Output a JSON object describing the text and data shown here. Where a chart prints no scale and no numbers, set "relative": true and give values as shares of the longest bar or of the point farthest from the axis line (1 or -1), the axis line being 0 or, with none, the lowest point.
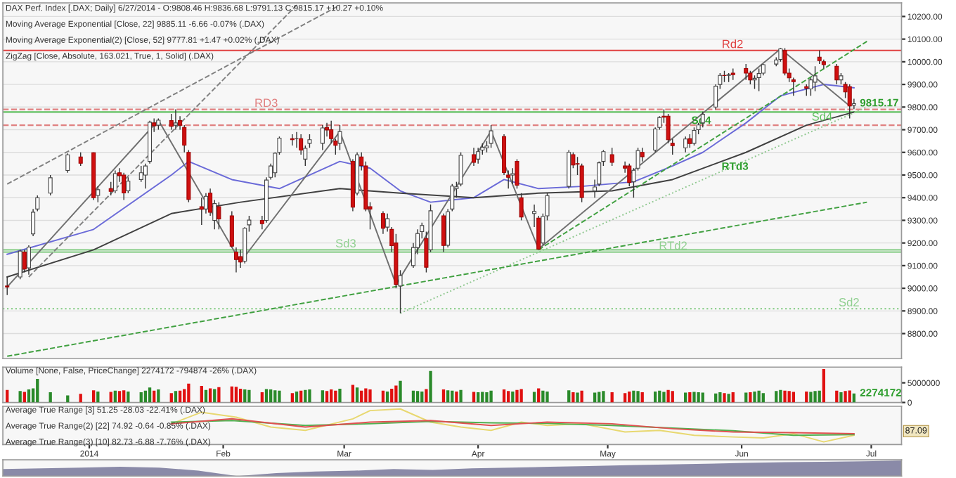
{
  "chart_data": [
    {
      "type": "candlestick",
      "title": "DAX Perf. Index [.DAX; Daily] 6/27/2014 - O:9808.46 H:9836.68 L:9791.13 C:9815.17 +10.27 +0.10%",
      "annotations": [
        "Moving Average Exponential [Close, 22] 9885.11 -6.66 -0.07% (.DAX)",
        "Moving Average Exponential(2) [Close, 52] 9777.81 +1.47 +0.02% (.DAX)",
        "ZigZag [Close, Absolute, 163.021, True, 1, Solid] (.DAX)",
        {
          "text": "RTd3",
          "x": "2014-05-26",
          "y": 9535
        },
        {
          "text": "Sd4",
          "x": "2014-05-19",
          "y": 9738
        },
        {
          "text": "9815.17",
          "x": "2014-06-27",
          "y": 9815.17
        }
      ],
      "x": [
        "2013-12-13",
        "2013-12-16",
        "2013-12-17",
        "2013-12-18",
        "2013-12-19",
        "2013-12-20",
        "2013-12-23",
        "2013-12-27",
        "2013-12-30",
        "2014-01-02",
        "2014-01-03",
        "2014-01-06",
        "2014-01-07",
        "2014-01-08",
        "2014-01-09",
        "2014-01-10",
        "2014-01-13",
        "2014-01-14",
        "2014-01-15",
        "2014-01-16",
        "2014-01-17",
        "2014-01-20",
        "2014-01-21",
        "2014-01-22",
        "2014-01-23",
        "2014-01-24",
        "2014-01-27",
        "2014-01-28",
        "2014-01-29",
        "2014-01-30",
        "2014-01-31",
        "2014-02-03",
        "2014-02-04",
        "2014-02-05",
        "2014-02-06",
        "2014-02-07",
        "2014-02-10",
        "2014-02-11",
        "2014-02-12",
        "2014-02-13",
        "2014-02-14",
        "2014-02-17",
        "2014-02-18",
        "2014-02-19",
        "2014-02-20",
        "2014-02-21",
        "2014-02-24",
        "2014-02-25",
        "2014-02-26",
        "2014-02-27",
        "2014-02-28",
        "2014-03-03",
        "2014-03-04",
        "2014-03-05",
        "2014-03-06",
        "2014-03-07",
        "2014-03-10",
        "2014-03-11",
        "2014-03-12",
        "2014-03-13",
        "2014-03-14",
        "2014-03-17",
        "2014-03-18",
        "2014-03-19",
        "2014-03-20",
        "2014-03-21",
        "2014-03-24",
        "2014-03-25",
        "2014-03-26",
        "2014-03-27",
        "2014-03-28",
        "2014-03-31",
        "2014-04-01",
        "2014-04-02",
        "2014-04-03",
        "2014-04-04",
        "2014-04-07",
        "2014-04-08",
        "2014-04-09",
        "2014-04-10",
        "2014-04-11",
        "2014-04-14",
        "2014-04-15",
        "2014-04-16",
        "2014-04-17",
        "2014-04-22",
        "2014-04-23",
        "2014-04-24",
        "2014-04-25",
        "2014-04-28",
        "2014-04-29",
        "2014-04-30",
        "2014-05-02",
        "2014-05-05",
        "2014-05-06",
        "2014-05-07",
        "2014-05-08",
        "2014-05-09",
        "2014-05-12",
        "2014-05-13",
        "2014-05-14",
        "2014-05-15",
        "2014-05-16",
        "2014-05-19",
        "2014-05-20",
        "2014-05-21",
        "2014-05-22",
        "2014-05-23",
        "2014-05-26",
        "2014-05-27",
        "2014-05-28",
        "2014-05-29",
        "2014-05-30",
        "2014-06-02",
        "2014-06-03",
        "2014-06-04",
        "2014-06-05",
        "2014-06-06",
        "2014-06-09",
        "2014-06-10",
        "2014-06-11",
        "2014-06-12",
        "2014-06-13",
        "2014-06-16",
        "2014-06-17",
        "2014-06-18",
        "2014-06-19",
        "2014-06-20",
        "2014-06-23",
        "2014-06-24",
        "2014-06-25",
        "2014-06-26",
        "2014-06-27"
      ],
      "ohlc": [
        [
          9010,
          9050,
          8970,
          9006
        ],
        [
          9050,
          9170,
          9040,
          9164
        ],
        [
          9160,
          9170,
          9070,
          9085
        ],
        [
          9090,
          9190,
          9060,
          9182
        ],
        [
          9240,
          9350,
          9230,
          9336
        ],
        [
          9350,
          9410,
          9340,
          9400
        ],
        [
          9420,
          9500,
          9410,
          9488
        ],
        [
          9520,
          9595,
          9510,
          9589
        ],
        [
          9580,
          9600,
          9540,
          9552
        ],
        [
          9598,
          9600,
          9390,
          9400
        ],
        [
          9410,
          9450,
          9380,
          9435
        ],
        [
          9440,
          9470,
          9410,
          9428
        ],
        [
          9430,
          9520,
          9420,
          9506
        ],
        [
          9510,
          9530,
          9470,
          9497
        ],
        [
          9500,
          9510,
          9390,
          9421
        ],
        [
          9430,
          9490,
          9420,
          9473
        ],
        [
          9480,
          9540,
          9470,
          9510
        ],
        [
          9500,
          9550,
          9440,
          9540
        ],
        [
          9560,
          9740,
          9550,
          9733
        ],
        [
          9730,
          9750,
          9690,
          9717
        ],
        [
          9720,
          9750,
          9700,
          9742
        ],
        [
          9740,
          9770,
          9700,
          9715
        ],
        [
          9720,
          9790,
          9700,
          9730
        ],
        [
          9740,
          9760,
          9700,
          9720
        ],
        [
          9710,
          9720,
          9600,
          9632
        ],
        [
          9600,
          9610,
          9380,
          9392
        ],
        [
          9360,
          9400,
          9280,
          9349
        ],
        [
          9350,
          9420,
          9330,
          9406
        ],
        [
          9420,
          9440,
          9320,
          9336
        ],
        [
          9300,
          9390,
          9260,
          9374
        ],
        [
          9360,
          9380,
          9260,
          9306
        ],
        [
          9320,
          9340,
          9180,
          9186
        ],
        [
          9160,
          9180,
          9070,
          9127
        ],
        [
          9140,
          9170,
          9090,
          9116
        ],
        [
          9120,
          9270,
          9110,
          9265
        ],
        [
          9280,
          9320,
          9250,
          9301
        ],
        [
          9300,
          9320,
          9260,
          9285
        ],
        [
          9300,
          9490,
          9290,
          9478
        ],
        [
          9490,
          9550,
          9480,
          9540
        ],
        [
          9510,
          9600,
          9490,
          9596
        ],
        [
          9600,
          9670,
          9590,
          9663
        ],
        [
          9660,
          9680,
          9630,
          9656
        ],
        [
          9660,
          9690,
          9620,
          9660
        ],
        [
          9660,
          9680,
          9590,
          9610
        ],
        [
          9570,
          9630,
          9540,
          9618
        ],
        [
          9640,
          9680,
          9620,
          9656
        ],
        [
          9640,
          9720,
          9610,
          9708
        ],
        [
          9710,
          9730,
          9670,
          9699
        ],
        [
          9700,
          9740,
          9640,
          9661
        ],
        [
          9650,
          9660,
          9590,
          9631
        ],
        [
          9640,
          9720,
          9610,
          9692
        ],
        [
          9560,
          9570,
          9340,
          9358
        ],
        [
          9420,
          9600,
          9410,
          9589
        ],
        [
          9580,
          9600,
          9520,
          9542
        ],
        [
          9540,
          9560,
          9340,
          9350
        ],
        [
          9360,
          9380,
          9260,
          9350
        ],
        [
          9330,
          9340,
          9240,
          9265
        ],
        [
          9270,
          9330,
          9250,
          9307
        ],
        [
          9260,
          9270,
          9160,
          9188
        ],
        [
          9200,
          9240,
          9000,
          9017
        ],
        [
          9010,
          9080,
          8890,
          9056
        ],
        [
          9100,
          9200,
          9090,
          9180
        ],
        [
          9180,
          9260,
          9150,
          9242
        ],
        [
          9250,
          9290,
          9220,
          9277
        ],
        [
          9220,
          9250,
          9070,
          9093
        ],
        [
          9170,
          9370,
          9160,
          9342
        ],
        [
          9320,
          9330,
          9160,
          9189
        ],
        [
          9190,
          9350,
          9180,
          9338
        ],
        [
          9350,
          9460,
          9340,
          9451
        ],
        [
          9440,
          9470,
          9400,
          9448
        ],
        [
          9460,
          9600,
          9450,
          9587
        ],
        [
          9590,
          9620,
          9540,
          9556
        ],
        [
          9570,
          9620,
          9550,
          9603
        ],
        [
          9610,
          9640,
          9590,
          9623
        ],
        [
          9620,
          9650,
          9600,
          9628
        ],
        [
          9640,
          9720,
          9620,
          9695
        ],
        [
          9670,
          9680,
          9500,
          9511
        ],
        [
          9500,
          9520,
          9440,
          9490
        ],
        [
          9500,
          9530,
          9460,
          9506
        ],
        [
          9560,
          9570,
          9440,
          9455
        ],
        [
          9400,
          9420,
          9300,
          9315
        ],
        [
          9330,
          9370,
          9270,
          9339
        ],
        [
          9310,
          9320,
          9170,
          9173
        ],
        [
          9200,
          9330,
          9190,
          9317
        ],
        [
          9320,
          9420,
          9300,
          9409
        ],
        [
          9450,
          9610,
          9440,
          9600
        ],
        [
          9590,
          9600,
          9530,
          9544
        ],
        [
          9550,
          9580,
          9500,
          9548
        ],
        [
          9540,
          9550,
          9380,
          9401
        ],
        [
          9430,
          9480,
          9400,
          9447
        ],
        [
          9460,
          9560,
          9450,
          9554
        ],
        [
          9560,
          9610,
          9540,
          9603
        ],
        [
          9590,
          9620,
          9540,
          9556
        ],
        [
          9540,
          9560,
          9510,
          9530
        ],
        [
          9540,
          9550,
          9450,
          9467
        ],
        [
          9470,
          9530,
          9400,
          9521
        ],
        [
          9530,
          9620,
          9520,
          9608
        ],
        [
          9600,
          9620,
          9560,
          9581
        ],
        [
          9610,
          9710,
          9600,
          9703
        ],
        [
          9710,
          9760,
          9700,
          9754
        ],
        [
          9760,
          9790,
          9730,
          9755
        ],
        [
          9760,
          9770,
          9640,
          9656
        ],
        [
          9640,
          9660,
          9590,
          9630
        ],
        [
          9620,
          9670,
          9600,
          9659
        ],
        [
          9660,
          9680,
          9620,
          9639
        ],
        [
          9640,
          9710,
          9630,
          9697
        ],
        [
          9700,
          9730,
          9680,
          9721
        ],
        [
          9730,
          9780,
          9710,
          9768
        ],
        [
          9800,
          9900,
          9790,
          9892
        ],
        [
          9900,
          9950,
          9880,
          9940
        ],
        [
          9940,
          9960,
          9910,
          9939
        ],
        [
          9940,
          9950,
          9910,
          9943
        ],
        [
          9950,
          9970,
          9920,
          9943
        ],
        [
          9970,
          9990,
          9920,
          9950
        ],
        [
          9950,
          9960,
          9900,
          9920
        ],
        [
          9920,
          9940,
          9880,
          9927
        ],
        [
          9930,
          9970,
          9870,
          9948
        ],
        [
          9950,
          9990,
          9940,
          9987
        ],
        [
          9990,
          10020,
          9980,
          10008
        ],
        [
          10010,
          10060,
          10000,
          10057
        ],
        [
          10050,
          10060,
          9940,
          9950
        ],
        [
          9950,
          9970,
          9910,
          9929
        ],
        [
          9920,
          9930,
          9850,
          9912
        ],
        [
          9890,
          9900,
          9850,
          9883
        ],
        [
          9880,
          9930,
          9850,
          9920
        ],
        [
          9910,
          9980,
          9870,
          9938
        ],
        [
          10020,
          10050,
          9990,
          10005
        ],
        [
          10000,
          10010,
          9970,
          9987
        ],
        [
          9980,
          9990,
          9900,
          9920
        ],
        [
          9920,
          9950,
          9900,
          9938
        ],
        [
          9900,
          9910,
          9840,
          9867
        ],
        [
          9890,
          9900,
          9750,
          9805
        ],
        [
          9808,
          9837,
          9791,
          9815
        ]
      ],
      "series": [
        {
          "type": "line",
          "color": "#6a6ad8",
          "line_style": "solid",
          "x": [
            "2013-12-13",
            "2014-01-02",
            "2014-01-20",
            "2014-01-24",
            "2014-02-03",
            "2014-02-14",
            "2014-02-28",
            "2014-03-07",
            "2014-03-14",
            "2014-03-21",
            "2014-03-31",
            "2014-04-07",
            "2014-04-15",
            "2014-04-25",
            "2014-05-07",
            "2014-05-16",
            "2014-05-23",
            "2014-06-02",
            "2014-06-10",
            "2014-06-20",
            "2014-06-27"
          ],
          "values": [
            9150,
            9260,
            9500,
            9560,
            9480,
            9440,
            9560,
            9530,
            9430,
            9380,
            9400,
            9480,
            9440,
            9450,
            9470,
            9540,
            9600,
            9730,
            9850,
            9900,
            9885
          ]
        },
        {
          "type": "line",
          "color": "#404040",
          "line_style": "solid",
          "x": [
            "2013-12-13",
            "2014-01-02",
            "2014-01-20",
            "2014-02-05",
            "2014-02-28",
            "2014-03-14",
            "2014-03-31",
            "2014-04-15",
            "2014-05-02",
            "2014-05-16",
            "2014-06-02",
            "2014-06-16",
            "2014-06-27"
          ],
          "values": [
            9050,
            9170,
            9330,
            9380,
            9440,
            9420,
            9400,
            9420,
            9430,
            9480,
            9600,
            9720,
            9778
          ]
        },
        {
          "type": "line",
          "color": "#707070",
          "line_style": "solid",
          "x": [
            "2013-12-13",
            "2014-01-17",
            "2014-02-05",
            "2014-02-28",
            "2014-03-13",
            "2014-04-04",
            "2014-04-15",
            "2014-06-10",
            "2014-06-26"
          ],
          "values": [
            9006,
            9742,
            9116,
            9692,
            9017,
            9695,
            9173,
            10057,
            9805
          ]
        },
        {
          "type": "line",
          "color": "#808080",
          "line_style": "dashed",
          "x": [
            "2013-12-13",
            "2014-02-28"
          ],
          "values": [
            9460,
            10250
          ]
        },
        {
          "type": "line",
          "color": "#808080",
          "line_style": "dashed",
          "x": [
            "2013-12-18",
            "2014-02-18"
          ],
          "values": [
            9050,
            10250
          ]
        },
        {
          "type": "line",
          "color": "#40a040",
          "line_style": "dashed",
          "x": [
            "2014-04-15",
            "2014-06-30"
          ],
          "values": [
            9170,
            10090
          ]
        },
        {
          "type": "line",
          "color": "#90c890",
          "line_style": "dotted",
          "x": [
            "2014-03-14",
            "2014-06-30"
          ],
          "values": [
            8890,
            9800
          ]
        },
        {
          "type": "line",
          "color": "#40a040",
          "line_style": "dashed",
          "x": [
            "2013-12-13",
            "2014-06-30"
          ],
          "values": [
            8700,
            9380
          ]
        }
      ],
      "ref_lines": [
        {
          "axis": "y",
          "value": 9790,
          "label": "RD3",
          "color": "#e08080",
          "line_style": "dashed"
        },
        {
          "axis": "y",
          "value": 9720,
          "color": "#e08080",
          "line_style": "dashed"
        },
        {
          "axis": "y",
          "value": 10050,
          "label": "Rd2",
          "color": "#e04040",
          "line_style": "solid"
        },
        {
          "axis": "y",
          "value": 9778,
          "label": "Sd4",
          "color": "#60c060",
          "line_style": "solid"
        },
        {
          "axis": "y",
          "value": 9170,
          "label": "Sd3",
          "color": "#90d090",
          "line_style": "solid"
        },
        {
          "axis": "y",
          "value": 9160,
          "label": "RTd2",
          "color": "#90d090",
          "line_style": "solid"
        },
        {
          "axis": "y",
          "value": 8910,
          "label": "Sd2",
          "color": "#90d090",
          "line_style": "dotted"
        }
      ],
      "xlim": [
        "2013-12-12",
        "2014-07-08"
      ],
      "ylim": [
        8690,
        10260
      ],
      "yticks": [
        {
          "value": 8800,
          "label": "8800.00"
        },
        {
          "value": 8900,
          "label": "8900.00"
        },
        {
          "value": 9000,
          "label": "9000.00"
        },
        {
          "value": 9100,
          "label": "9100.00"
        },
        {
          "value": 9200,
          "label": "9200.00"
        },
        {
          "value": 9300,
          "label": "9300.00"
        },
        {
          "value": 9400,
          "label": "9400.00"
        },
        {
          "value": 9500,
          "label": "9500.00"
        },
        {
          "value": 9600,
          "label": "9600.00"
        },
        {
          "value": 9700,
          "label": "9700.00"
        },
        {
          "value": 9800,
          "label": "9800.00"
        },
        {
          "value": 9900,
          "label": "9900.00"
        },
        {
          "value": 10000,
          "label": "10000.00"
        },
        {
          "value": 10100,
          "label": "10100.00"
        },
        {
          "value": 10200,
          "label": "10200.00"
        }
      ],
      "tick_labels": "y",
      "grid": "y"
    },
    {
      "type": "bar",
      "title": "Volume [None, False, PriceChange] 2274172 -794874 -26% (.DAX)",
      "annotations": [
        {
          "text": "2274172",
          "x": "2014-06-27",
          "y": 2274172
        }
      ],
      "x": [
        "2013-12-13",
        "2013-12-16",
        "2013-12-17",
        "2013-12-18",
        "2013-12-19",
        "2013-12-20",
        "2013-12-23",
        "2013-12-27",
        "2013-12-30",
        "2014-01-02",
        "2014-01-03",
        "2014-01-06",
        "2014-01-07",
        "2014-01-08",
        "2014-01-09",
        "2014-01-10",
        "2014-01-13",
        "2014-01-14",
        "2014-01-15",
        "2014-01-16",
        "2014-01-17",
        "2014-01-20",
        "2014-01-21",
        "2014-01-22",
        "2014-01-23",
        "2014-01-24",
        "2014-01-27",
        "2014-01-28",
        "2014-01-29",
        "2014-01-30",
        "2014-01-31",
        "2014-02-03",
        "2014-02-04",
        "2014-02-05",
        "2014-02-06",
        "2014-02-07",
        "2014-02-10",
        "2014-02-11",
        "2014-02-12",
        "2014-02-13",
        "2014-02-14",
        "2014-02-17",
        "2014-02-18",
        "2014-02-19",
        "2014-02-20",
        "2014-02-21",
        "2014-02-24",
        "2014-02-25",
        "2014-02-26",
        "2014-02-27",
        "2014-02-28",
        "2014-03-03",
        "2014-03-04",
        "2014-03-05",
        "2014-03-06",
        "2014-03-07",
        "2014-03-10",
        "2014-03-11",
        "2014-03-12",
        "2014-03-13",
        "2014-03-14",
        "2014-03-17",
        "2014-03-18",
        "2014-03-19",
        "2014-03-20",
        "2014-03-21",
        "2014-03-24",
        "2014-03-25",
        "2014-03-26",
        "2014-03-27",
        "2014-03-28",
        "2014-03-31",
        "2014-04-01",
        "2014-04-02",
        "2014-04-03",
        "2014-04-04",
        "2014-04-07",
        "2014-04-08",
        "2014-04-09",
        "2014-04-10",
        "2014-04-11",
        "2014-04-14",
        "2014-04-15",
        "2014-04-16",
        "2014-04-17",
        "2014-04-22",
        "2014-04-23",
        "2014-04-24",
        "2014-04-25",
        "2014-04-28",
        "2014-04-29",
        "2014-04-30",
        "2014-05-02",
        "2014-05-05",
        "2014-05-06",
        "2014-05-07",
        "2014-05-08",
        "2014-05-09",
        "2014-05-12",
        "2014-05-13",
        "2014-05-14",
        "2014-05-15",
        "2014-05-16",
        "2014-05-19",
        "2014-05-20",
        "2014-05-21",
        "2014-05-22",
        "2014-05-23",
        "2014-05-26",
        "2014-05-27",
        "2014-05-28",
        "2014-05-29",
        "2014-05-30",
        "2014-06-02",
        "2014-06-03",
        "2014-06-04",
        "2014-06-05",
        "2014-06-06",
        "2014-06-09",
        "2014-06-10",
        "2014-06-11",
        "2014-06-12",
        "2014-06-13",
        "2014-06-16",
        "2014-06-17",
        "2014-06-18",
        "2014-06-19",
        "2014-06-20",
        "2014-06-23",
        "2014-06-24",
        "2014-06-25",
        "2014-06-26",
        "2014-06-27"
      ],
      "values": [
        3200000,
        2900000,
        2700000,
        3300000,
        3600000,
        6000000,
        2600000,
        1800000,
        2200000,
        3100000,
        2800000,
        2700000,
        3000000,
        2900000,
        3100000,
        2800000,
        2600000,
        3000000,
        3800000,
        3000000,
        3300000,
        2400000,
        2900000,
        3000000,
        3400000,
        4800000,
        4200000,
        3200000,
        3600000,
        3400000,
        3900000,
        4100000,
        4000000,
        3500000,
        3300000,
        3200000,
        2600000,
        3400000,
        3300000,
        3100000,
        3000000,
        2400000,
        2800000,
        3000000,
        3200000,
        3300000,
        3100000,
        2900000,
        3300000,
        3000000,
        3500000,
        4500000,
        3800000,
        3000000,
        3600000,
        3300000,
        3000000,
        2800000,
        3500000,
        4300000,
        5500000,
        3000000,
        2900000,
        2800000,
        3400000,
        8000000,
        3300000,
        3100000,
        3000000,
        2800000,
        3200000,
        2700000,
        2600000,
        2700000,
        2600000,
        3000000,
        3300000,
        2900000,
        2800000,
        3200000,
        3400000,
        2700000,
        3600000,
        3000000,
        2800000,
        3100000,
        2600000,
        2500000,
        3000000,
        2500000,
        2700000,
        2900000,
        2600000,
        2400000,
        2800000,
        3000000,
        2900000,
        2600000,
        2800000,
        3000000,
        2700000,
        3200000,
        2900000,
        2500000,
        2600000,
        2700000,
        2600000,
        2500000,
        2300000,
        2600000,
        2400000,
        2200000,
        2600000,
        2500000,
        2600000,
        2800000,
        3000000,
        2400000,
        2900000,
        3200000,
        3000000,
        2900000,
        2700000,
        2800000,
        2700000,
        2900000,
        3000000,
        8500000,
        3000000,
        2600000,
        2900000,
        3070000,
        2274172
      ],
      "colors": [
        "#e01010",
        "#2a8a2a",
        "#e01010",
        "#2a8a2a",
        "#2a8a2a",
        "#2a8a2a",
        "#2a8a2a",
        "#2a8a2a",
        "#e01010",
        "#e01010",
        "#2a8a2a",
        "#e01010",
        "#2a8a2a",
        "#e01010",
        "#e01010",
        "#2a8a2a",
        "#2a8a2a",
        "#2a8a2a",
        "#2a8a2a",
        "#e01010",
        "#2a8a2a",
        "#e01010",
        "#2a8a2a",
        "#e01010",
        "#e01010",
        "#e01010",
        "#e01010",
        "#2a8a2a",
        "#e01010",
        "#2a8a2a",
        "#e01010",
        "#e01010",
        "#e01010",
        "#e01010",
        "#2a8a2a",
        "#2a8a2a",
        "#e01010",
        "#2a8a2a",
        "#2a8a2a",
        "#2a8a2a",
        "#2a8a2a",
        "#e01010",
        "#2a8a2a",
        "#e01010",
        "#2a8a2a",
        "#2a8a2a",
        "#2a8a2a",
        "#e01010",
        "#e01010",
        "#e01010",
        "#2a8a2a",
        "#e01010",
        "#2a8a2a",
        "#e01010",
        "#e01010",
        "#e01010",
        "#e01010",
        "#2a8a2a",
        "#e01010",
        "#e01010",
        "#2a8a2a",
        "#2a8a2a",
        "#2a8a2a",
        "#2a8a2a",
        "#e01010",
        "#2a8a2a",
        "#e01010",
        "#2a8a2a",
        "#2a8a2a",
        "#e01010",
        "#2a8a2a",
        "#e01010",
        "#2a8a2a",
        "#2a8a2a",
        "#2a8a2a",
        "#2a8a2a",
        "#e01010",
        "#e01010",
        "#2a8a2a",
        "#e01010",
        "#e01010",
        "#2a8a2a",
        "#e01010",
        "#2a8a2a",
        "#2a8a2a",
        "#2a8a2a",
        "#e01010",
        "#2a8a2a",
        "#e01010",
        "#2a8a2a",
        "#2a8a2a",
        "#2a8a2a",
        "#e01010",
        "#e01010",
        "#e01010",
        "#2a8a2a",
        "#2a8a2a",
        "#e01010",
        "#2a8a2a",
        "#2a8a2a",
        "#2a8a2a",
        "#e01010",
        "#e01010",
        "#2a8a2a",
        "#e01010",
        "#2a8a2a",
        "#2a8a2a",
        "#2a8a2a",
        "#2a8a2a",
        "#2a8a2a",
        "#e01010",
        "#2a8a2a",
        "#e01010",
        "#2a8a2a",
        "#e01010",
        "#2a8a2a",
        "#2a8a2a",
        "#2a8a2a",
        "#2a8a2a",
        "#2a8a2a",
        "#e01010",
        "#e01010",
        "#e01010",
        "#e01010",
        "#2a8a2a",
        "#2a8a2a",
        "#2a8a2a",
        "#e01010",
        "#e01010",
        "#2a8a2a",
        "#e01010",
        "#e01010",
        "#2a8a2a"
      ],
      "xlim": [
        "2013-12-12",
        "2014-07-08"
      ],
      "ylim": [
        0,
        9000000
      ],
      "yticks": [
        0,
        5000000
      ],
      "tick_labels": "y"
    },
    {
      "type": "line",
      "relative": true,
      "annotations": [
        "Average True Range [3] 51.25 -28.03 -22.41% (.DAX)",
        "Average True Range(2) [22] 74.92 -0.64 -0.85% (.DAX)",
        "Average True Range(3) [10] 82.73 -6.88 -7.76% (.DAX)",
        "87.09"
      ],
      "series": [
        {
          "color": "#e8d870",
          "x": [
            "2014-01-20",
            "2014-01-27",
            "2014-02-04",
            "2014-02-12",
            "2014-02-20",
            "2014-03-03",
            "2014-03-07",
            "2014-03-14",
            "2014-03-21",
            "2014-03-28",
            "2014-04-04",
            "2014-04-11",
            "2014-04-17",
            "2014-04-25",
            "2014-05-05",
            "2014-05-13",
            "2014-05-21",
            "2014-05-30",
            "2014-06-06",
            "2014-06-13",
            "2014-06-20",
            "2014-06-27"
          ],
          "values": [
            0.55,
            0.9,
            0.75,
            0.45,
            0.35,
            0.7,
            0.95,
            1,
            0.6,
            0.45,
            0.35,
            0.6,
            0.5,
            0.55,
            0.3,
            0.35,
            0.2,
            0.15,
            0.12,
            0.25,
            0,
            0.2
          ]
        },
        {
          "color": "#50b050",
          "x": [
            "2014-01-20",
            "2014-02-03",
            "2014-02-20",
            "2014-03-07",
            "2014-03-21",
            "2014-04-04",
            "2014-04-17",
            "2014-05-02",
            "2014-05-16",
            "2014-05-30",
            "2014-06-13",
            "2014-06-27"
          ],
          "values": [
            0.6,
            0.65,
            0.5,
            0.55,
            0.62,
            0.58,
            0.56,
            0.5,
            0.42,
            0.34,
            0.2,
            0.22
          ]
        },
        {
          "color": "#e05050",
          "x": [
            "2014-01-20",
            "2014-02-03",
            "2014-02-20",
            "2014-03-07",
            "2014-03-21",
            "2014-04-04",
            "2014-04-17",
            "2014-05-02",
            "2014-05-16",
            "2014-05-30",
            "2014-06-13",
            "2014-06-27"
          ],
          "values": [
            0.55,
            0.7,
            0.45,
            0.6,
            0.65,
            0.5,
            0.6,
            0.55,
            0.4,
            0.3,
            0.28,
            0.25
          ]
        }
      ],
      "xlim": [
        "2013-12-12",
        "2014-07-08"
      ],
      "xticks": [
        {
          "value": "2014-01-01",
          "label": "2014"
        },
        {
          "value": "2014-02-01",
          "label": "Feb"
        },
        {
          "value": "2014-03-01",
          "label": "Mar"
        },
        {
          "value": "2014-04-01",
          "label": "Apr"
        },
        {
          "value": "2014-05-01",
          "label": "May"
        },
        {
          "value": "2014-06-01",
          "label": "Jun"
        },
        {
          "value": "2014-07-01",
          "label": "Jul"
        }
      ],
      "tick_labels": "x"
    },
    {
      "type": "area",
      "relative": true,
      "categories": [
        null,
        null,
        null,
        null,
        null,
        null,
        null,
        null,
        null,
        null,
        null,
        null,
        null,
        null,
        null,
        null,
        null,
        null,
        null,
        null,
        null,
        null,
        null,
        null
      ],
      "series": [
        {
          "color": "#8a8aa8",
          "values": [
            0.45,
            0.5,
            0.55,
            0.6,
            0.55,
            0.35,
            0,
            0.2,
            0.3,
            0.35,
            0.45,
            0.4,
            0.5,
            0.55,
            0.6,
            0.65,
            0.7,
            0.75,
            0.8,
            0.85,
            0.9,
            0.92,
            0.95,
            1
          ]
        }
      ],
      "tick_labels": false
    }
  ]
}
